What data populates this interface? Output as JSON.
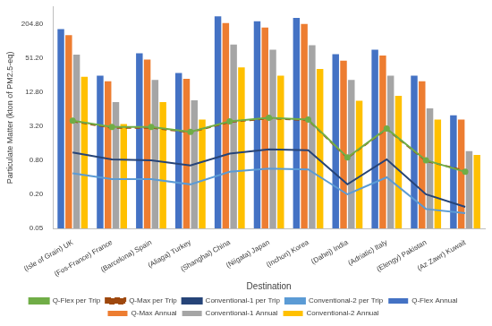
{
  "chart_data": {
    "type": "bar",
    "x_label": "Destination",
    "y_label": "Particulate Matter (kton of PM2.5-eq)",
    "log": "y",
    "grid": false,
    "legend": "bottom",
    "ylim": [
      0.05,
      409.6
    ],
    "yticks": [
      0.05,
      {
        "value": 0.2,
        "label": "0.20"
      },
      {
        "value": 0.8,
        "label": "0.80"
      },
      {
        "value": 3.2,
        "label": "3.20"
      },
      {
        "value": 12.8,
        "label": "12.80"
      },
      {
        "value": 51.2,
        "label": "51.20"
      },
      {
        "value": 204.8,
        "label": "204.80"
      }
    ],
    "categories": [
      "(Isle of Grain) UK",
      "(Fos-France) France",
      "(Barcelona) Spain",
      "(Aliaga) Turkey",
      "(Shanghai) China",
      "(Niigata) Japan",
      "(Inchon) Korea",
      "(Dahej) India",
      "(Adriatic) Italy",
      "(Elengy) Pakistan",
      "(Az Zawr) Kuwait"
    ],
    "series": [
      {
        "name": "Q-Flex Annual",
        "type": "bar",
        "color": "#4472c4",
        "values": [
          166,
          25,
          62,
          28,
          280,
          230,
          262,
          60,
          72,
          25,
          5.0
        ]
      },
      {
        "name": "Q-Max Annual",
        "type": "bar",
        "color": "#ed7d31",
        "values": [
          130,
          20,
          48,
          22,
          213,
          178,
          205,
          46,
          57,
          20,
          4.2
        ]
      },
      {
        "name": "Conventional-1 Annual",
        "type": "bar",
        "color": "#a5a5a5",
        "values": [
          59,
          8.5,
          21,
          9.2,
          89,
          72,
          86,
          21,
          25,
          6.6,
          1.16
        ]
      },
      {
        "name": "Conventional-2 Annual",
        "type": "bar",
        "color": "#ffc000",
        "values": [
          24,
          3.5,
          8.5,
          4.2,
          35,
          25,
          33,
          9,
          11,
          4.2,
          0.99
        ]
      },
      {
        "name": "Q-Flex per Trip",
        "type": "line",
        "color": "#70ad47",
        "line_style": "solid",
        "marker": "circle",
        "values": [
          4.0,
          3.1,
          3.1,
          2.55,
          3.9,
          4.5,
          4.2,
          0.9,
          2.9,
          0.8,
          0.5
        ]
      },
      {
        "name": "Q-Max per Trip",
        "type": "line",
        "color": "#9e480e",
        "line_style": "dashed",
        "marker": "none",
        "values": [
          3.9,
          3.0,
          3.0,
          2.5,
          3.8,
          4.4,
          4.1,
          0.88,
          2.85,
          0.78,
          0.52
        ]
      },
      {
        "name": "Conventional-1 per Trip",
        "type": "line",
        "color": "#264478",
        "line_style": "solid",
        "marker": "none",
        "values": [
          1.1,
          0.83,
          0.8,
          0.65,
          1.05,
          1.25,
          1.2,
          0.3,
          0.83,
          0.2,
          0.12
        ]
      },
      {
        "name": "Conventional-2 per Trip",
        "type": "line",
        "color": "#5b9bd5",
        "line_style": "solid",
        "marker": "none",
        "values": [
          0.47,
          0.37,
          0.37,
          0.3,
          0.5,
          0.57,
          0.55,
          0.2,
          0.4,
          0.11,
          0.093
        ]
      }
    ]
  }
}
